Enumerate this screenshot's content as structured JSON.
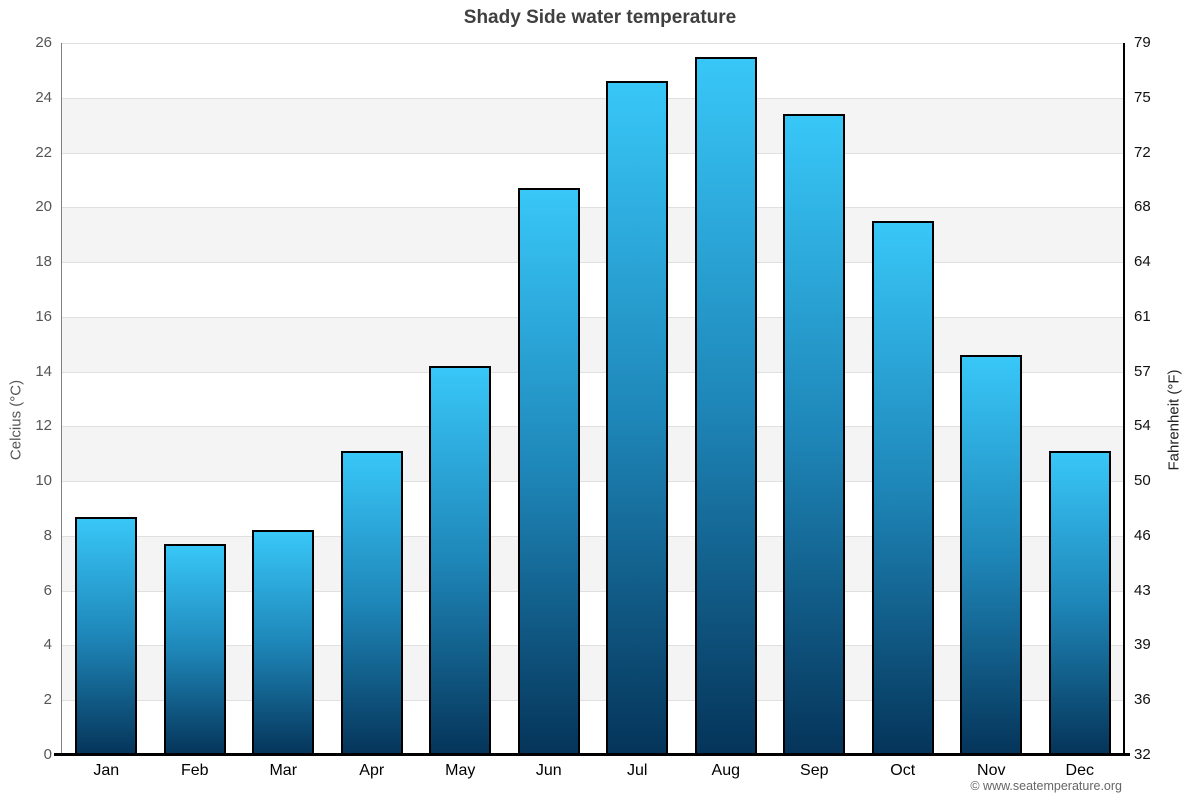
{
  "title": "Shady Side water temperature",
  "footer": "© www.seatemperature.org",
  "chart_data": {
    "type": "bar",
    "title": "Shady Side water temperature",
    "categories": [
      "Jan",
      "Feb",
      "Mar",
      "Apr",
      "May",
      "Jun",
      "Jul",
      "Aug",
      "Sep",
      "Oct",
      "Nov",
      "Dec"
    ],
    "values": [
      8.7,
      7.7,
      8.2,
      11.1,
      14.2,
      20.7,
      24.6,
      25.5,
      23.4,
      19.5,
      14.6,
      11.1
    ],
    "ylabel_left": "Celcius (°C)",
    "ylabel_right": "Fahrenheit (°F)",
    "ylim": [
      0,
      26
    ],
    "yticks_left": [
      26,
      24,
      22,
      20,
      18,
      16,
      14,
      12,
      10,
      8,
      6,
      4,
      2,
      0
    ],
    "yticks_right": [
      79,
      75,
      72,
      68,
      64,
      61,
      57,
      54,
      50,
      46,
      43,
      39,
      36,
      32
    ],
    "legend": "none",
    "grid": "horizontal-bands-alternating",
    "colors": {
      "bar_gradient_top": "#38c7f8",
      "bar_gradient_mid": "#1e86b8",
      "bar_gradient_bottom": "#053459",
      "band_fill": "#f4f4f4",
      "gridline": "#e0e0e0",
      "title_text": "#404040",
      "left_tick_text": "#555555",
      "right_tick_text": "#111111",
      "month_text": "#000000"
    }
  }
}
